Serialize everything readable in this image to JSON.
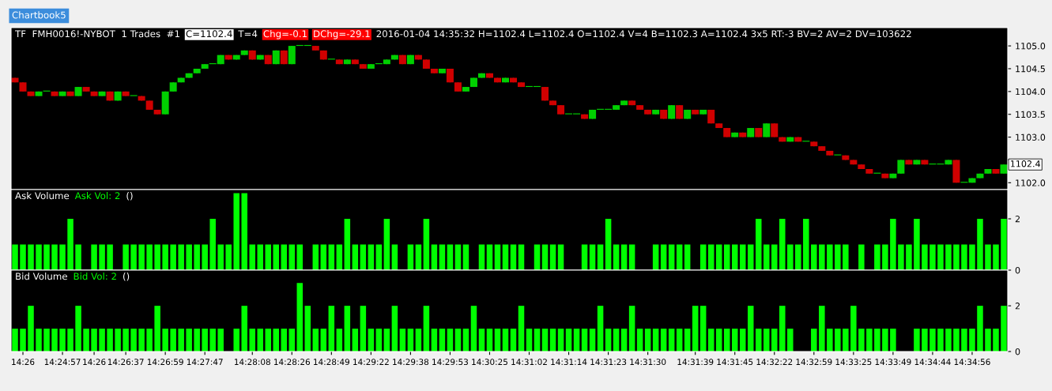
{
  "chart_data": [
    {
      "type": "candlestick",
      "title": "TF  FMH0016!-NYBOT  1 Trades  #1",
      "annotations": [
        "C=1102.4",
        "T=4",
        "Chg=-0.1",
        "DChg=-29.1",
        "2016-01-04 14:35:32 H=1102.4 L=1102.4 O=1102.4 V=4 B=1102.3 A=1102.4 3x5 RT:-3 BV=2 AV=2 DV=103622",
        "Chartbook5",
        {
          "text": "1102.4",
          "y": 1102.4
        }
      ],
      "ohlc": [
        [
          1104.3,
          1104.3,
          1104.2,
          1104.2
        ],
        [
          1104.2,
          1104.2,
          1104.0,
          1104.0
        ],
        [
          1104.0,
          1104.0,
          1103.9,
          1103.9
        ],
        [
          1103.9,
          1104.0,
          1103.9,
          1104.0
        ],
        [
          1104.0,
          1104.0,
          1104.0,
          1104.0
        ],
        [
          1104.0,
          1104.0,
          1103.9,
          1103.9
        ],
        [
          1103.9,
          1104.0,
          1103.9,
          1104.0
        ],
        [
          1104.0,
          1104.0,
          1103.9,
          1103.9
        ],
        [
          1103.9,
          1104.1,
          1103.9,
          1104.1
        ],
        [
          1104.1,
          1104.1,
          1104.0,
          1104.0
        ],
        [
          1104.0,
          1104.0,
          1103.9,
          1103.9
        ],
        [
          1103.9,
          1104.0,
          1103.9,
          1104.0
        ],
        [
          1104.0,
          1104.0,
          1103.8,
          1103.8
        ],
        [
          1103.8,
          1104.0,
          1103.8,
          1104.0
        ],
        [
          1104.0,
          1104.0,
          1103.9,
          1103.9
        ],
        [
          1103.9,
          1103.9,
          1103.9,
          1103.9
        ],
        [
          1103.9,
          1103.9,
          1103.8,
          1103.8
        ],
        [
          1103.8,
          1103.8,
          1103.6,
          1103.6
        ],
        [
          1103.6,
          1103.6,
          1103.5,
          1103.5
        ],
        [
          1103.5,
          1104.0,
          1103.5,
          1104.0
        ],
        [
          1104.0,
          1104.2,
          1104.0,
          1104.2
        ],
        [
          1104.2,
          1104.3,
          1104.2,
          1104.3
        ],
        [
          1104.3,
          1104.4,
          1104.3,
          1104.4
        ],
        [
          1104.4,
          1104.5,
          1104.4,
          1104.5
        ],
        [
          1104.5,
          1104.6,
          1104.5,
          1104.6
        ],
        [
          1104.6,
          1104.6,
          1104.6,
          1104.6
        ],
        [
          1104.6,
          1104.8,
          1104.6,
          1104.8
        ],
        [
          1104.8,
          1104.8,
          1104.7,
          1104.7
        ],
        [
          1104.7,
          1104.8,
          1104.7,
          1104.8
        ],
        [
          1104.8,
          1104.9,
          1104.8,
          1104.9
        ],
        [
          1104.9,
          1104.9,
          1104.7,
          1104.7
        ],
        [
          1104.7,
          1104.8,
          1104.7,
          1104.8
        ],
        [
          1104.8,
          1104.8,
          1104.6,
          1104.6
        ],
        [
          1104.6,
          1104.9,
          1104.6,
          1104.9
        ],
        [
          1104.9,
          1104.9,
          1104.6,
          1104.6
        ],
        [
          1104.6,
          1105.0,
          1104.6,
          1105.0
        ],
        [
          1105.0,
          1105.0,
          1105.0,
          1105.0
        ],
        [
          1105.0,
          1105.0,
          1105.0,
          1105.0
        ],
        [
          1105.0,
          1105.0,
          1104.9,
          1104.9
        ],
        [
          1104.9,
          1104.9,
          1104.7,
          1104.7
        ],
        [
          1104.7,
          1104.7,
          1104.7,
          1104.7
        ],
        [
          1104.7,
          1104.7,
          1104.6,
          1104.6
        ],
        [
          1104.6,
          1104.7,
          1104.6,
          1104.7
        ],
        [
          1104.7,
          1104.7,
          1104.6,
          1104.6
        ],
        [
          1104.6,
          1104.6,
          1104.5,
          1104.5
        ],
        [
          1104.5,
          1104.6,
          1104.5,
          1104.6
        ],
        [
          1104.6,
          1104.6,
          1104.6,
          1104.6
        ],
        [
          1104.6,
          1104.7,
          1104.6,
          1104.7
        ],
        [
          1104.7,
          1104.8,
          1104.7,
          1104.8
        ],
        [
          1104.8,
          1104.8,
          1104.6,
          1104.6
        ],
        [
          1104.6,
          1104.8,
          1104.6,
          1104.8
        ],
        [
          1104.8,
          1104.8,
          1104.7,
          1104.7
        ],
        [
          1104.7,
          1104.7,
          1104.5,
          1104.5
        ],
        [
          1104.5,
          1104.5,
          1104.4,
          1104.4
        ],
        [
          1104.4,
          1104.5,
          1104.4,
          1104.5
        ],
        [
          1104.5,
          1104.5,
          1104.2,
          1104.2
        ],
        [
          1104.2,
          1104.2,
          1104.0,
          1104.0
        ],
        [
          1104.0,
          1104.1,
          1104.0,
          1104.1
        ],
        [
          1104.1,
          1104.3,
          1104.1,
          1104.3
        ],
        [
          1104.3,
          1104.4,
          1104.3,
          1104.4
        ],
        [
          1104.4,
          1104.4,
          1104.3,
          1104.3
        ],
        [
          1104.3,
          1104.3,
          1104.2,
          1104.2
        ],
        [
          1104.2,
          1104.3,
          1104.2,
          1104.3
        ],
        [
          1104.3,
          1104.3,
          1104.2,
          1104.2
        ],
        [
          1104.2,
          1104.2,
          1104.1,
          1104.1
        ],
        [
          1104.1,
          1104.1,
          1104.1,
          1104.1
        ],
        [
          1104.1,
          1104.1,
          1104.1,
          1104.1
        ],
        [
          1104.1,
          1104.1,
          1103.8,
          1103.8
        ],
        [
          1103.8,
          1103.8,
          1103.7,
          1103.7
        ],
        [
          1103.7,
          1103.7,
          1103.5,
          1103.5
        ],
        [
          1103.5,
          1103.5,
          1103.5,
          1103.5
        ],
        [
          1103.5,
          1103.5,
          1103.5,
          1103.5
        ],
        [
          1103.5,
          1103.5,
          1103.4,
          1103.4
        ],
        [
          1103.4,
          1103.6,
          1103.4,
          1103.6
        ],
        [
          1103.6,
          1103.6,
          1103.6,
          1103.6
        ],
        [
          1103.6,
          1103.6,
          1103.6,
          1103.6
        ],
        [
          1103.6,
          1103.7,
          1103.6,
          1103.7
        ],
        [
          1103.7,
          1103.8,
          1103.7,
          1103.8
        ],
        [
          1103.8,
          1103.8,
          1103.7,
          1103.7
        ],
        [
          1103.7,
          1103.7,
          1103.6,
          1103.6
        ],
        [
          1103.6,
          1103.6,
          1103.5,
          1103.5
        ],
        [
          1103.5,
          1103.6,
          1103.5,
          1103.6
        ],
        [
          1103.6,
          1103.6,
          1103.4,
          1103.4
        ],
        [
          1103.4,
          1103.7,
          1103.4,
          1103.7
        ],
        [
          1103.7,
          1103.7,
          1103.4,
          1103.4
        ],
        [
          1103.4,
          1103.6,
          1103.4,
          1103.6
        ],
        [
          1103.6,
          1103.6,
          1103.5,
          1103.5
        ],
        [
          1103.5,
          1103.6,
          1103.5,
          1103.6
        ],
        [
          1103.6,
          1103.6,
          1103.3,
          1103.3
        ],
        [
          1103.3,
          1103.3,
          1103.2,
          1103.2
        ],
        [
          1103.2,
          1103.2,
          1103.0,
          1103.0
        ],
        [
          1103.0,
          1103.1,
          1103.0,
          1103.1
        ],
        [
          1103.1,
          1103.1,
          1103.0,
          1103.0
        ],
        [
          1103.0,
          1103.2,
          1103.0,
          1103.2
        ],
        [
          1103.2,
          1103.2,
          1103.0,
          1103.0
        ],
        [
          1103.0,
          1103.3,
          1103.0,
          1103.3
        ],
        [
          1103.3,
          1103.3,
          1103.0,
          1103.0
        ],
        [
          1103.0,
          1103.0,
          1102.9,
          1102.9
        ],
        [
          1102.9,
          1103.0,
          1102.9,
          1103.0
        ],
        [
          1103.0,
          1103.0,
          1102.9,
          1102.9
        ],
        [
          1102.9,
          1102.9,
          1102.9,
          1102.9
        ],
        [
          1102.9,
          1102.9,
          1102.8,
          1102.8
        ],
        [
          1102.8,
          1102.8,
          1102.7,
          1102.7
        ],
        [
          1102.7,
          1102.7,
          1102.6,
          1102.6
        ],
        [
          1102.6,
          1102.6,
          1102.6,
          1102.6
        ],
        [
          1102.6,
          1102.6,
          1102.5,
          1102.5
        ],
        [
          1102.5,
          1102.5,
          1102.4,
          1102.4
        ],
        [
          1102.4,
          1102.4,
          1102.3,
          1102.3
        ],
        [
          1102.3,
          1102.3,
          1102.2,
          1102.2
        ],
        [
          1102.2,
          1102.2,
          1102.2,
          1102.2
        ],
        [
          1102.2,
          1102.2,
          1102.1,
          1102.1
        ],
        [
          1102.1,
          1102.2,
          1102.1,
          1102.2
        ],
        [
          1102.2,
          1102.5,
          1102.2,
          1102.5
        ],
        [
          1102.5,
          1102.5,
          1102.4,
          1102.4
        ],
        [
          1102.4,
          1102.5,
          1102.4,
          1102.5
        ],
        [
          1102.5,
          1102.5,
          1102.4,
          1102.4
        ],
        [
          1102.4,
          1102.4,
          1102.4,
          1102.4
        ],
        [
          1102.4,
          1102.4,
          1102.4,
          1102.4
        ],
        [
          1102.4,
          1102.5,
          1102.4,
          1102.5
        ],
        [
          1102.5,
          1102.5,
          1102.0,
          1102.0
        ],
        [
          1102.0,
          1102.0,
          1102.0,
          1102.0
        ],
        [
          1102.0,
          1102.1,
          1102.0,
          1102.1
        ],
        [
          1102.1,
          1102.2,
          1102.1,
          1102.2
        ],
        [
          1102.2,
          1102.3,
          1102.2,
          1102.3
        ],
        [
          1102.3,
          1102.3,
          1102.2,
          1102.2
        ],
        [
          1102.2,
          1102.4,
          1102.2,
          1102.4
        ]
      ],
      "ylim": [
        1101.85,
        1105.4
      ],
      "yticks": [
        {
          "value": 1102.0,
          "label": "1102.0"
        },
        {
          "value": 1102.5,
          "label": null
        },
        {
          "value": 1103.0,
          "label": "1103.0"
        },
        {
          "value": 1103.5,
          "label": "1103.5"
        },
        {
          "value": 1104.0,
          "label": "1104.0"
        },
        {
          "value": 1104.5,
          "label": "1104.5"
        },
        {
          "value": 1105.0,
          "label": "1105.0"
        }
      ],
      "tick_labels": "y",
      "grid": false,
      "legend": false
    },
    {
      "type": "bar",
      "title": "Ask Volume",
      "annotations": [
        "Ask Vol: 2",
        "()"
      ],
      "color": "#00ff00",
      "values": [
        1,
        1,
        1,
        1,
        1,
        1,
        1,
        2,
        1,
        0,
        1,
        1,
        1,
        0,
        1,
        1,
        1,
        1,
        1,
        1,
        1,
        1,
        1,
        1,
        1,
        2,
        1,
        1,
        3,
        3,
        1,
        1,
        1,
        1,
        1,
        1,
        1,
        0,
        1,
        1,
        1,
        1,
        2,
        1,
        1,
        1,
        1,
        2,
        1,
        0,
        1,
        1,
        2,
        1,
        1,
        1,
        1,
        1,
        0,
        1,
        1,
        1,
        1,
        1,
        1,
        0,
        1,
        1,
        1,
        1,
        0,
        0,
        1,
        1,
        1,
        2,
        1,
        1,
        1,
        0,
        0,
        1,
        1,
        1,
        1,
        1,
        0,
        1,
        1,
        1,
        1,
        1,
        1,
        1,
        2,
        1,
        1,
        2,
        1,
        1,
        2,
        1,
        1,
        1,
        1,
        1,
        0,
        1,
        0,
        1,
        1,
        2,
        1,
        1,
        2,
        1,
        1,
        1,
        1,
        1,
        1,
        1,
        2,
        1,
        1,
        2
      ],
      "ylim": [
        0,
        3.14
      ],
      "yticks": [
        0,
        2
      ],
      "tick_labels": "y",
      "grid": false,
      "legend": false
    },
    {
      "type": "bar",
      "title": "Bid Volume",
      "annotations": [
        "Bid Vol: 2",
        "()"
      ],
      "color": "#00ff00",
      "categories": [
        null,
        "14:26",
        null,
        null,
        null,
        null,
        "14:24:57",
        null,
        null,
        null,
        "14:26",
        null,
        null,
        null,
        "14:26:37",
        null,
        null,
        null,
        null,
        "14:26:59",
        null,
        null,
        null,
        null,
        "14:27:47",
        null,
        null,
        null,
        null,
        null,
        "14:28:08",
        null,
        null,
        null,
        null,
        "14:28:26",
        null,
        null,
        null,
        null,
        "14:28:49",
        null,
        null,
        null,
        null,
        "14:29:22",
        null,
        null,
        null,
        null,
        "14:29:38",
        null,
        null,
        null,
        null,
        "14:29:53",
        null,
        null,
        null,
        null,
        "14:30:25",
        null,
        null,
        null,
        null,
        "14:31:02",
        null,
        null,
        null,
        null,
        "14:31:14",
        null,
        null,
        null,
        null,
        "14:31:23",
        null,
        null,
        null,
        null,
        "14:31:30",
        null,
        null,
        null,
        null,
        null,
        "14:31:39",
        null,
        null,
        null,
        null,
        "14:31:45",
        null,
        null,
        null,
        null,
        "14:32:22",
        null,
        null,
        null,
        null,
        "14:32:59",
        null,
        null,
        null,
        null,
        "14:33:25",
        null,
        null,
        null,
        null,
        "14:33:49",
        null,
        null,
        null,
        null,
        "14:34:44",
        null,
        null,
        null,
        null,
        "14:34:56",
        null,
        null,
        null,
        null
      ],
      "values": [
        1,
        1,
        2,
        1,
        1,
        1,
        1,
        1,
        2,
        1,
        1,
        1,
        1,
        1,
        1,
        1,
        1,
        1,
        2,
        1,
        1,
        1,
        1,
        1,
        1,
        1,
        1,
        0,
        1,
        2,
        1,
        1,
        1,
        1,
        1,
        1,
        3,
        2,
        1,
        1,
        2,
        1,
        2,
        1,
        2,
        1,
        1,
        1,
        2,
        1,
        1,
        1,
        2,
        1,
        1,
        1,
        1,
        1,
        2,
        1,
        1,
        1,
        1,
        1,
        2,
        1,
        1,
        1,
        1,
        1,
        1,
        1,
        1,
        1,
        2,
        1,
        1,
        1,
        2,
        1,
        1,
        1,
        1,
        1,
        1,
        1,
        2,
        2,
        1,
        1,
        1,
        1,
        1,
        2,
        1,
        1,
        1,
        2,
        1,
        0,
        0,
        1,
        2,
        1,
        1,
        1,
        2,
        1,
        1,
        1,
        1,
        1,
        0,
        0,
        1,
        1,
        1,
        1,
        1,
        1,
        1,
        1,
        2,
        1,
        1,
        2
      ],
      "ylim": [
        0,
        3.56
      ],
      "yticks": [
        0,
        2
      ],
      "grid": false,
      "legend": false
    }
  ]
}
